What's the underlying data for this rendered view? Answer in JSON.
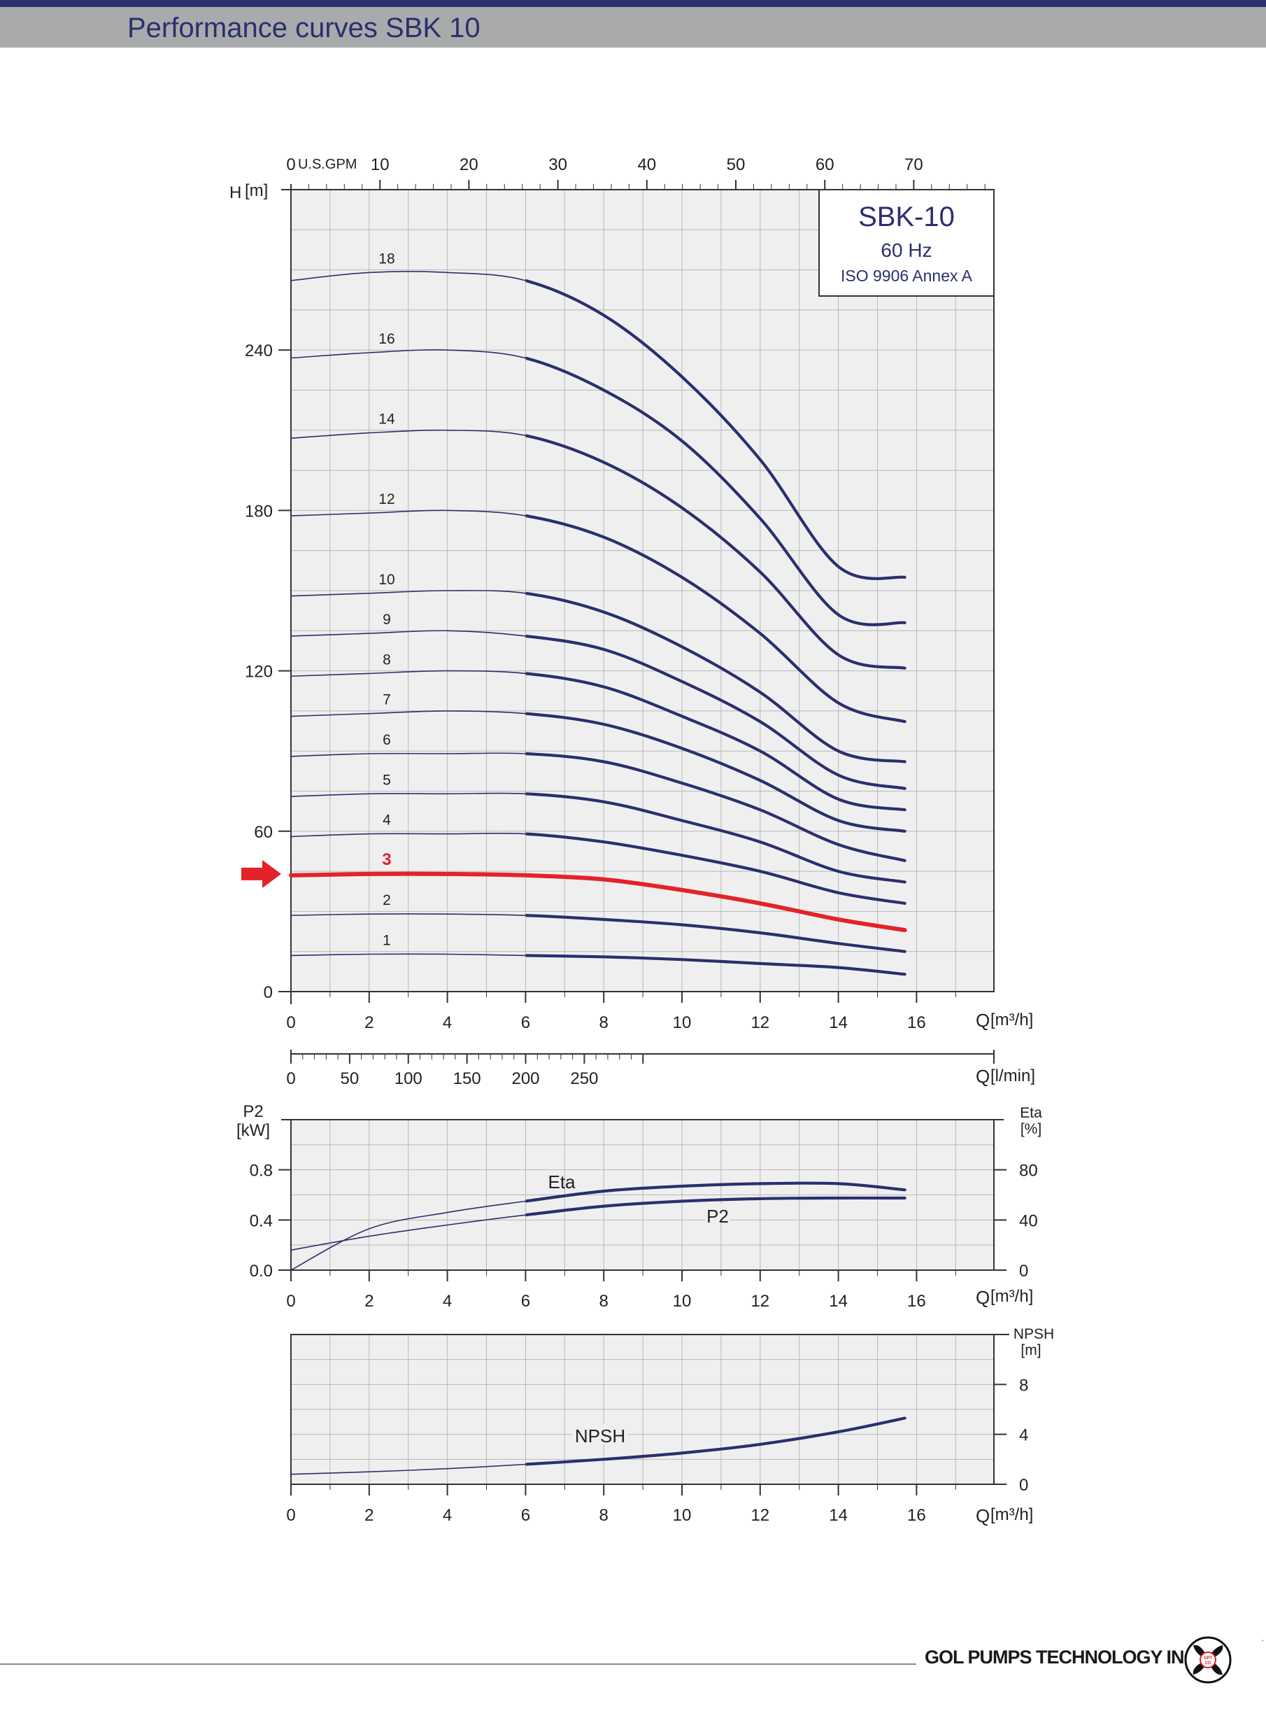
{
  "page": {
    "title": "Performance curves SBK 10",
    "company": "GOL PUMPS TECHNOLOGY INC",
    "logo_text": "GPT CO"
  },
  "colors": {
    "curve": "#2a2f6e",
    "highlight": "#e4222a",
    "plot_bg": "#efefef",
    "grid": "#b8b8b8",
    "header_bar": "#a9aaac",
    "top_bar": "#2a2f6e"
  },
  "chart_data": [
    {
      "type": "line",
      "id": "head",
      "legend_box": [
        "SBK-10",
        "60 Hz",
        "ISO 9906 Annex A"
      ],
      "legend_placement": "top-right",
      "y_axis": {
        "label": "H",
        "unit": "[m]",
        "range": [
          0,
          300
        ],
        "ticks": [
          "0",
          "60",
          "120",
          "180",
          "240"
        ]
      },
      "x_axis": {
        "label": "Q",
        "unit": "[m³/h]",
        "range": [
          0,
          18
        ],
        "ticks": [
          "0",
          "2",
          "4",
          "6",
          "8",
          "10",
          "12",
          "14",
          "16"
        ]
      },
      "x_axis_top": {
        "unit": "U.S.GPM",
        "ticks": [
          "0",
          "10",
          "20",
          "30",
          "40",
          "50",
          "60",
          "70"
        ]
      },
      "x_axis_lpm": {
        "unit": "Q",
        "unit_suffix": "[l/min]",
        "ticks": [
          "0",
          "50",
          "100",
          "150",
          "200",
          "250"
        ]
      },
      "grid": true,
      "highlight_stage": "3",
      "x": [
        0,
        2,
        4,
        6,
        8,
        10,
        12,
        14,
        15.7
      ],
      "series": [
        {
          "name": "18",
          "values": [
            266,
            269,
            269,
            266,
            253,
            230,
            199,
            159,
            155
          ]
        },
        {
          "name": "16",
          "values": [
            237,
            239,
            240,
            237,
            225,
            206,
            177,
            141,
            138
          ]
        },
        {
          "name": "14",
          "values": [
            207,
            209,
            210,
            208,
            198,
            181,
            157,
            126,
            121
          ]
        },
        {
          "name": "12",
          "values": [
            178,
            179,
            180,
            178,
            170,
            155,
            134,
            108,
            101
          ]
        },
        {
          "name": "10",
          "values": [
            148,
            149,
            150,
            149,
            142,
            129,
            112,
            90,
            86
          ]
        },
        {
          "name": "9",
          "values": [
            133,
            134,
            135,
            133,
            128,
            116,
            101,
            81,
            76
          ]
        },
        {
          "name": "8",
          "values": [
            118,
            119,
            120,
            119,
            114,
            103,
            90,
            72,
            68
          ]
        },
        {
          "name": "7",
          "values": [
            103,
            104,
            105,
            104,
            100,
            91,
            79,
            64,
            60
          ]
        },
        {
          "name": "6",
          "values": [
            88,
            89,
            89,
            89,
            86,
            78,
            68,
            55,
            49
          ]
        },
        {
          "name": "5",
          "values": [
            73,
            74,
            74,
            74,
            71,
            64,
            56,
            45,
            41
          ]
        },
        {
          "name": "4",
          "values": [
            58,
            59,
            59,
            59,
            56,
            51,
            45,
            37,
            33
          ]
        },
        {
          "name": "3",
          "values": [
            43.5,
            44,
            44,
            43.5,
            42,
            38,
            33,
            27,
            23
          ]
        },
        {
          "name": "2",
          "values": [
            28.5,
            29,
            29,
            28.5,
            27,
            25,
            22,
            18,
            15
          ]
        },
        {
          "name": "1",
          "values": [
            13.5,
            14,
            14,
            13.5,
            13,
            12,
            10.5,
            9,
            6.5
          ]
        }
      ]
    },
    {
      "type": "line",
      "id": "power_efficiency",
      "y_axis_left": {
        "label": "P2",
        "unit": "[kW]",
        "range": [
          0,
          1.2
        ],
        "ticks": [
          "0.0",
          "0.4",
          "0.8"
        ]
      },
      "y_axis_right": {
        "label": "Eta",
        "unit": "[%]",
        "range": [
          0,
          120
        ],
        "ticks": [
          "0",
          "40",
          "80"
        ]
      },
      "x_axis": {
        "label": "Q",
        "unit": "[m³/h]",
        "ticks": [
          "0",
          "2",
          "4",
          "6",
          "8",
          "10",
          "12",
          "14",
          "16"
        ]
      },
      "grid": true,
      "series": [
        {
          "name": "Eta",
          "axis": "right",
          "x": [
            0,
            2,
            4,
            6,
            8,
            10,
            12,
            14,
            15.7
          ],
          "values": [
            0,
            33,
            46,
            55,
            63,
            67,
            69,
            69,
            64
          ]
        },
        {
          "name": "P2",
          "axis": "left",
          "x": [
            0,
            2,
            4,
            6,
            8,
            10,
            12,
            14,
            15.7
          ],
          "values": [
            0.16,
            0.27,
            0.36,
            0.44,
            0.51,
            0.55,
            0.57,
            0.575,
            0.575
          ]
        }
      ]
    },
    {
      "type": "line",
      "id": "npsh",
      "y_axis_right": {
        "label": "NPSH",
        "unit": "[m]",
        "range": [
          0,
          12
        ],
        "ticks": [
          "0",
          "4",
          "8"
        ]
      },
      "x_axis": {
        "label": "Q",
        "unit": "[m³/h]",
        "ticks": [
          "0",
          "2",
          "4",
          "6",
          "8",
          "10",
          "12",
          "14",
          "16"
        ]
      },
      "grid": true,
      "series": [
        {
          "name": "NPSH",
          "x": [
            0,
            2,
            4,
            6,
            8,
            10,
            12,
            14,
            15.7
          ],
          "values": [
            0.8,
            1.0,
            1.25,
            1.6,
            2.0,
            2.5,
            3.2,
            4.2,
            5.3
          ]
        }
      ]
    }
  ]
}
